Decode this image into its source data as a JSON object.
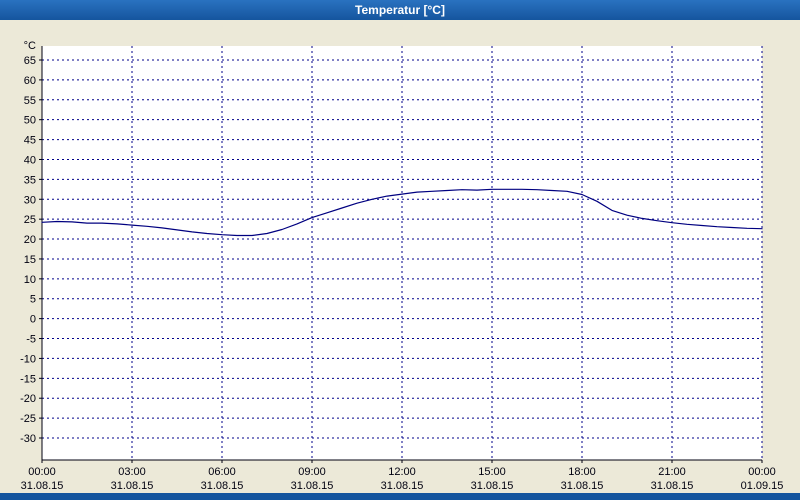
{
  "window": {
    "title": "Temperatur [°C]"
  },
  "colors": {
    "titlebar": "#15559e",
    "background": "#ece9d8",
    "plot_background": "#ffffff",
    "grid": "#00008b",
    "axis_text": "#000010",
    "line": "#000080"
  },
  "chart_data": {
    "type": "line",
    "title": "Temperatur [°C]",
    "ylabel": "°C",
    "xlabel": "",
    "ylim": [
      -30,
      65
    ],
    "y_tick_step": 5,
    "x_range_hours": [
      0,
      24
    ],
    "x_tick_step_hours": 3,
    "grid": "dashed",
    "legend": "none",
    "x_ticks": [
      {
        "time": "00:00",
        "date": "31.08.15"
      },
      {
        "time": "03:00",
        "date": "31.08.15"
      },
      {
        "time": "06:00",
        "date": "31.08.15"
      },
      {
        "time": "09:00",
        "date": "31.08.15"
      },
      {
        "time": "12:00",
        "date": "31.08.15"
      },
      {
        "time": "15:00",
        "date": "31.08.15"
      },
      {
        "time": "18:00",
        "date": "31.08.15"
      },
      {
        "time": "21:00",
        "date": "31.08.15"
      },
      {
        "time": "00:00",
        "date": "01.09.15"
      }
    ],
    "series": [
      {
        "name": "Temperatur",
        "color": "#000080",
        "points": [
          [
            0,
            24.2
          ],
          [
            0.5,
            24.4
          ],
          [
            1,
            24.3
          ],
          [
            1.5,
            24.0
          ],
          [
            2,
            24.0
          ],
          [
            2.5,
            23.8
          ],
          [
            3,
            23.5
          ],
          [
            3.5,
            23.2
          ],
          [
            4,
            22.8
          ],
          [
            4.5,
            22.3
          ],
          [
            5,
            21.8
          ],
          [
            5.5,
            21.4
          ],
          [
            6,
            21.1
          ],
          [
            6.5,
            20.9
          ],
          [
            7,
            20.9
          ],
          [
            7.5,
            21.4
          ],
          [
            8,
            22.4
          ],
          [
            8.5,
            23.8
          ],
          [
            9,
            25.4
          ],
          [
            9.5,
            26.6
          ],
          [
            10,
            27.8
          ],
          [
            10.5,
            29.0
          ],
          [
            11,
            30.0
          ],
          [
            11.5,
            30.8
          ],
          [
            12,
            31.3
          ],
          [
            12.5,
            31.8
          ],
          [
            13,
            32.0
          ],
          [
            13.5,
            32.2
          ],
          [
            14,
            32.4
          ],
          [
            14.5,
            32.3
          ],
          [
            15,
            32.5
          ],
          [
            15.5,
            32.5
          ],
          [
            16,
            32.5
          ],
          [
            16.5,
            32.4
          ],
          [
            17,
            32.2
          ],
          [
            17.5,
            32.0
          ],
          [
            18,
            31.2
          ],
          [
            18.5,
            29.5
          ],
          [
            19,
            27.2
          ],
          [
            19.5,
            26.0
          ],
          [
            20,
            25.2
          ],
          [
            20.5,
            24.6
          ],
          [
            21,
            24.1
          ],
          [
            21.5,
            23.7
          ],
          [
            22,
            23.4
          ],
          [
            22.5,
            23.1
          ],
          [
            23,
            22.9
          ],
          [
            23.5,
            22.7
          ],
          [
            24,
            22.6
          ]
        ]
      }
    ]
  }
}
